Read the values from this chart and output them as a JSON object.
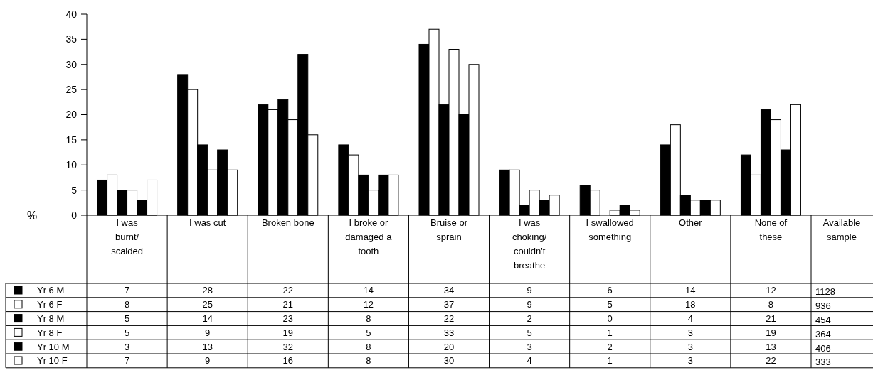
{
  "chart_data": {
    "type": "bar",
    "ylabel": "%",
    "categories": [
      "I was burnt/ scalded",
      "I was cut",
      "Broken bone",
      "I broke or damaged a tooth",
      "Bruise or sprain",
      "I was choking/ couldn't breathe",
      "I swallowed something",
      "Other",
      "None of these"
    ],
    "series": [
      {
        "name": "Yr 6 M",
        "color": "#000000",
        "values": [
          7,
          28,
          22,
          14,
          34,
          9,
          6,
          14,
          12
        ]
      },
      {
        "name": "Yr 6 F",
        "color": "#ffffff",
        "values": [
          8,
          25,
          21,
          12,
          37,
          9,
          5,
          18,
          8
        ]
      },
      {
        "name": "Yr 8 M",
        "color": "#000000",
        "values": [
          5,
          14,
          23,
          8,
          22,
          2,
          0,
          4,
          21
        ]
      },
      {
        "name": "Yr 8 F",
        "color": "#ffffff",
        "values": [
          5,
          9,
          19,
          5,
          33,
          5,
          1,
          3,
          19
        ]
      },
      {
        "name": "Yr 10 M",
        "color": "#000000",
        "values": [
          3,
          13,
          32,
          8,
          20,
          3,
          2,
          3,
          13
        ]
      },
      {
        "name": "Yr 10 F",
        "color": "#ffffff",
        "values": [
          7,
          9,
          16,
          8,
          30,
          4,
          1,
          3,
          22
        ]
      }
    ],
    "ylim": [
      0,
      40
    ],
    "yticks": [
      0,
      5,
      10,
      15,
      20,
      25,
      30,
      35,
      40
    ],
    "data_labels": true,
    "legend": "bottom",
    "annotations": [
      "Available sample",
      "1128",
      "936",
      "454",
      "364",
      "406",
      "333"
    ]
  }
}
